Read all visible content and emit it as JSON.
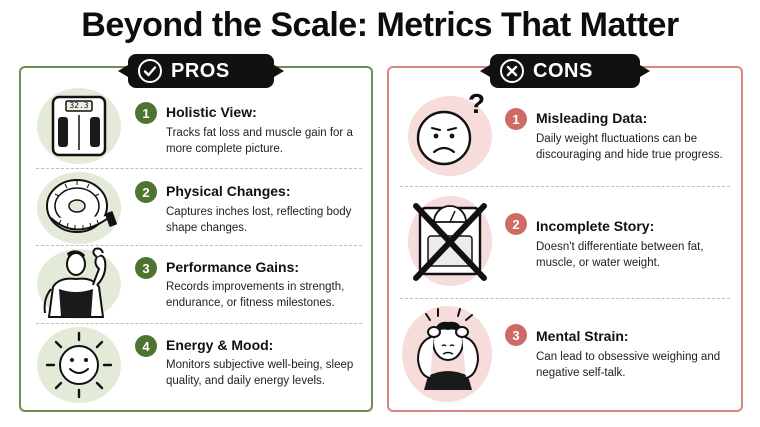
{
  "title": "Beyond the Scale: Metrics That Matter",
  "pros": {
    "badge_label": "PROS",
    "badge_icon": "check-icon",
    "accent": "#4e7431",
    "items": [
      {
        "number": "1",
        "heading": "Holistic View:",
        "text": "Tracks fat loss and muscle gain for a more complete picture.",
        "icon": "body-composition-scale-icon",
        "scale_reading": "32.3"
      },
      {
        "number": "2",
        "heading": "Physical Changes:",
        "text": "Captures inches lost, reflecting body shape changes.",
        "icon": "measuring-tape-icon"
      },
      {
        "number": "3",
        "heading": "Performance Gains:",
        "text": "Records improvements in strength, endurance, or fitness milestones.",
        "icon": "flexing-person-icon"
      },
      {
        "number": "4",
        "heading": "Energy & Mood:",
        "text": "Monitors subjective well-being, sleep quality, and daily energy levels.",
        "icon": "smiling-sun-icon"
      }
    ]
  },
  "cons": {
    "badge_label": "CONS",
    "badge_icon": "x-icon",
    "accent": "#cf6b67",
    "items": [
      {
        "number": "1",
        "heading": "Misleading Data:",
        "text": "Daily weight fluctuations can be discouraging and hide true progress.",
        "icon": "confused-face-icon",
        "icon_mark": "?"
      },
      {
        "number": "2",
        "heading": "Incomplete Story:",
        "text": "Doesn't differentiate between fat, muscle, or water weight.",
        "icon": "crossed-out-scale-icon"
      },
      {
        "number": "3",
        "heading": "Mental Strain:",
        "text": "Can lead to obsessive weighing and negative self-talk.",
        "icon": "stressed-person-icon"
      }
    ]
  }
}
